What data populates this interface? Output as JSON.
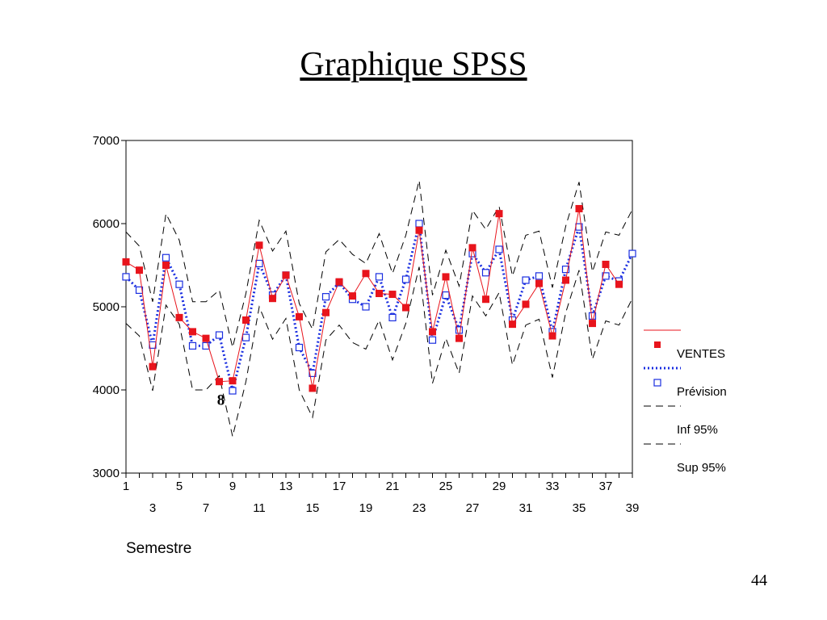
{
  "slide": {
    "title": "Graphique SPSS",
    "page_number": "44"
  },
  "chart_data": {
    "type": "line",
    "xlabel": "Semestre",
    "ylabel": "",
    "xlim": [
      1,
      39
    ],
    "ylim": [
      3000,
      7000
    ],
    "yticks": [
      3000,
      4000,
      5000,
      6000,
      7000
    ],
    "xticks_row1": [
      1,
      5,
      9,
      13,
      17,
      21,
      25,
      29,
      33,
      37
    ],
    "xticks_row2": [
      3,
      7,
      11,
      15,
      19,
      23,
      27,
      31,
      35,
      39
    ],
    "legend_position": "right",
    "grid": false,
    "annotations": [
      {
        "text": "8",
        "x": 8,
        "y": 3900
      }
    ],
    "x": [
      1,
      2,
      3,
      4,
      5,
      6,
      7,
      8,
      9,
      10,
      11,
      12,
      13,
      14,
      15,
      16,
      17,
      18,
      19,
      20,
      21,
      22,
      23,
      24,
      25,
      26,
      27,
      28,
      29,
      30,
      31,
      32,
      33,
      34,
      35,
      36,
      37,
      38,
      39
    ],
    "series": [
      {
        "name": "VENTES",
        "color": "#e8141c",
        "style": "solid",
        "marker": "filled-square",
        "values": [
          5540,
          5440,
          4280,
          5500,
          4870,
          4700,
          4620,
          4100,
          4110,
          4840,
          5740,
          5100,
          5380,
          4880,
          4020,
          4930,
          5300,
          5130,
          5400,
          5160,
          5150,
          4990,
          5920,
          4700,
          5360,
          4620,
          5710,
          5090,
          6120,
          4790,
          5030,
          5280,
          4650,
          5320,
          6180,
          4800,
          5510,
          5270,
          null
        ]
      },
      {
        "name": "Prévision",
        "color": "#1a2ee0",
        "style": "dotted",
        "marker": "open-square",
        "values": [
          5360,
          5200,
          4540,
          5590,
          5270,
          4530,
          4530,
          4660,
          3990,
          4630,
          5520,
          5140,
          5380,
          4510,
          4200,
          5120,
          5290,
          5090,
          5000,
          5360,
          4870,
          5330,
          6000,
          4600,
          5140,
          4720,
          5640,
          5410,
          5690,
          4840,
          5320,
          5370,
          4700,
          5450,
          5960,
          4890,
          5370,
          5310,
          5640
        ]
      },
      {
        "name": "Inf 95%",
        "color": "#000000",
        "style": "dashed",
        "marker": "none",
        "values": [
          4800,
          4650,
          3990,
          5020,
          4790,
          4000,
          4000,
          4170,
          3440,
          4100,
          5000,
          4610,
          4860,
          4000,
          3670,
          4600,
          4780,
          4570,
          4490,
          4840,
          4360,
          4800,
          5480,
          4080,
          4620,
          4200,
          5130,
          4890,
          5170,
          4300,
          4780,
          4850,
          4150,
          4930,
          5440,
          4370,
          4830,
          4780,
          5100
        ]
      },
      {
        "name": "Sup 95%",
        "color": "#000000",
        "style": "dashed",
        "marker": "none",
        "values": [
          5900,
          5730,
          5060,
          6120,
          5800,
          5060,
          5060,
          5200,
          4510,
          5160,
          6040,
          5670,
          5910,
          5040,
          4730,
          5660,
          5810,
          5630,
          5520,
          5880,
          5400,
          5860,
          6520,
          5140,
          5680,
          5250,
          6160,
          5930,
          6210,
          5370,
          5860,
          5910,
          5230,
          5970,
          6500,
          5420,
          5900,
          5860,
          6170
        ]
      }
    ]
  }
}
